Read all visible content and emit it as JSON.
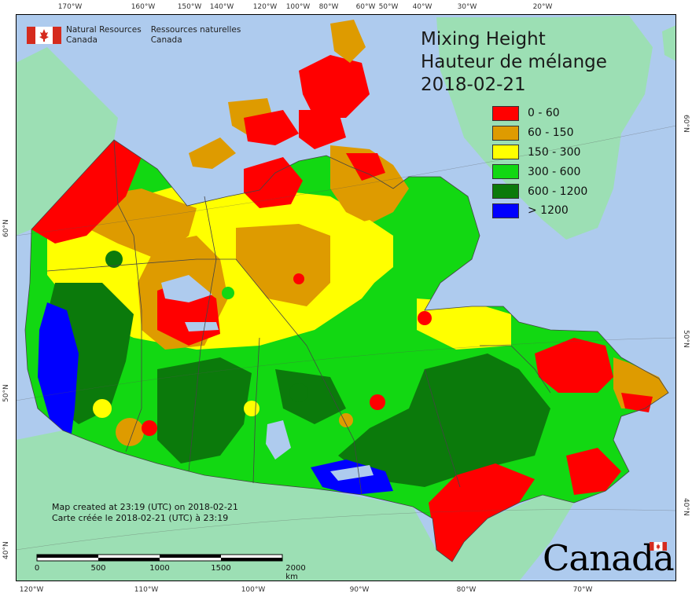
{
  "map": {
    "title_en": "Mixing Height",
    "title_fr": "Hauteur de mélange",
    "date": "2018-02-21",
    "colors": {
      "ocean": "#aecbee",
      "foreign_land": "#9cdfb4",
      "border": "#444444"
    },
    "legend": [
      {
        "label": "0 - 60",
        "color": "#ff0000"
      },
      {
        "label": "60 - 150",
        "color": "#de9b00"
      },
      {
        "label": "150 - 300",
        "color": "#ffff00"
      },
      {
        "label": "300 - 600",
        "color": "#12d812"
      },
      {
        "label": "600 - 1200",
        "color": "#0b7a0b"
      },
      {
        "label": "> 1200",
        "color": "#0000ff"
      }
    ],
    "top_ticks": [
      "170°W",
      "160°W",
      "150°W",
      "140°W",
      "120°W",
      "100°W",
      "80°W",
      "60°W",
      "50°W",
      "40°W",
      "30°W",
      "20°W"
    ],
    "bottom_ticks": [
      "120°W",
      "110°W",
      "100°W",
      "90°W",
      "80°W",
      "70°W"
    ],
    "left_ticks": [
      "60°N",
      "50°N",
      "40°N"
    ],
    "right_ticks": [
      "60°N",
      "50°N",
      "40°N"
    ],
    "credit_en": "Map created at 23:19 (UTC) on 2018-02-21",
    "credit_fr": "Carte créée le 2018-02-21 (UTC) à 23:19",
    "scale_labels": [
      "0",
      "500",
      "1000",
      "1500",
      "2000 km"
    ],
    "agency_en_1": "Natural Resources",
    "agency_en_2": "Canada",
    "agency_fr_1": "Ressources naturelles",
    "agency_fr_2": "Canada",
    "wordmark": "Canada"
  }
}
